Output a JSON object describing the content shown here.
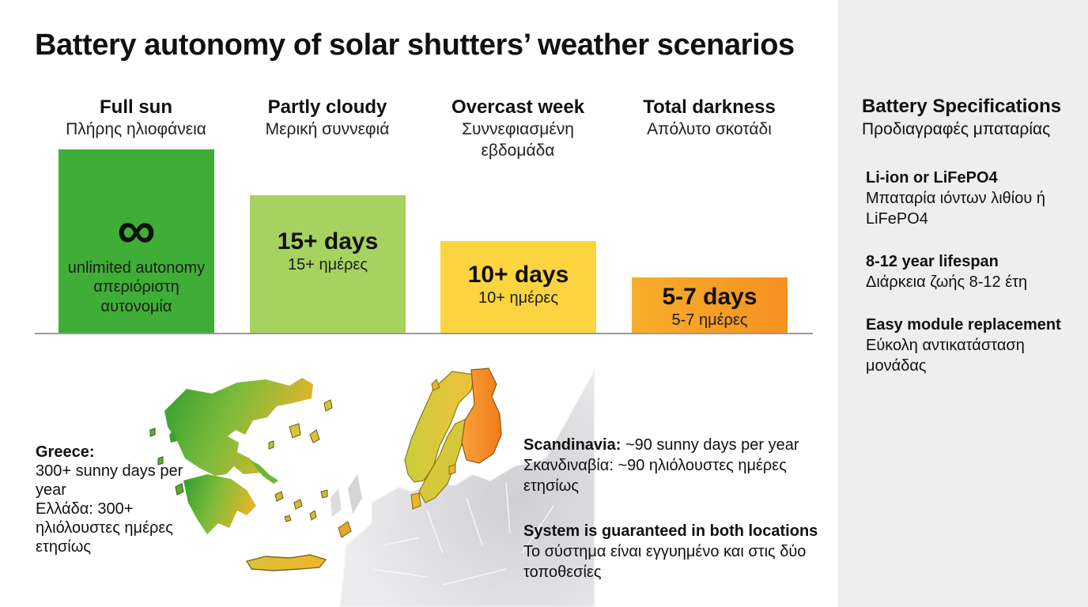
{
  "title": "Battery autonomy of solar shutters’ weather scenarios",
  "chart_data": {
    "type": "bar",
    "title": "Battery autonomy of solar shutters’ weather scenarios",
    "categories": [
      {
        "en": "Full sun",
        "gr": "Πλήρης ηλιοφάνεια"
      },
      {
        "en": "Partly cloudy",
        "gr": "Μερική συννεφιά"
      },
      {
        "en": "Overcast week",
        "gr": "Συννεφιασμένη εβδομάδα"
      },
      {
        "en": "Total darkness",
        "gr": "Απόλυτο σκοτάδι"
      }
    ],
    "values": [
      20,
      15,
      10,
      6
    ],
    "ylim": [
      0,
      20
    ],
    "value_labels": [
      {
        "symbol": "∞",
        "en": "unlimited autonomy",
        "gr": "απεριόριστη αυτονομία"
      },
      {
        "en": "15+ days",
        "gr": "15+ ημέρες"
      },
      {
        "en": "10+ days",
        "gr": "10+ ημέρες"
      },
      {
        "en": "5-7 days",
        "gr": "5-7 ημέρες"
      }
    ],
    "colors": [
      "#3fae36",
      "#a6d25f",
      "#fbd43f",
      "#f59121"
    ],
    "grid": false,
    "legend": "none"
  },
  "map": {
    "greece": {
      "label": "Greece:",
      "line1": "300+ sunny days per year",
      "line2": "Ελλάδα: 300+ ηλιόλουστες ημέρες ετησίως"
    },
    "scandinavia": {
      "label": "Scandinavia:",
      "line1": " ~90 sunny days per year",
      "line2": "Σκανδιναβία: ~90 ηλιόλουστες ημέρες ετησίως"
    },
    "guarantee": {
      "label": "System is guaranteed in both locations",
      "line2": "Το σύστημα είναι εγγυημένο και στις δύο τοποθεσίες"
    }
  },
  "specs": {
    "title_en": "Battery Specifications",
    "title_gr": "Προδιαγραφές μπαταρίας",
    "items": [
      {
        "en": "Li-ion or LiFePO4",
        "gr": "Μπαταρία ιόντων λιθίου ή LiFePO4"
      },
      {
        "en": "8-12 year lifespan",
        "gr": "Διάρκεια ζωής 8-12 έτη"
      },
      {
        "en": "Easy module replacement",
        "gr": "Εύκολη αντικατάσταση μονάδας"
      }
    ]
  }
}
